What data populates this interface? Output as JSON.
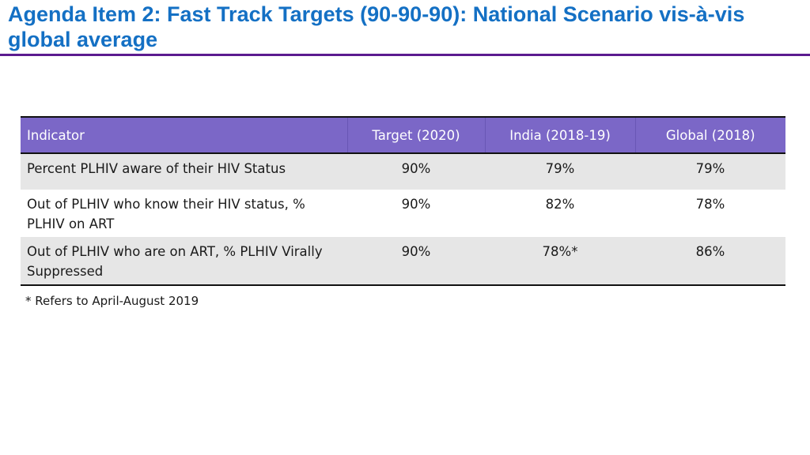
{
  "title": "Agenda Item 2: Fast Track Targets (90-90-90): National Scenario vis-à-vis global average",
  "table": {
    "headers": [
      "Indicator",
      "Target (2020)",
      "India (2018-19)",
      "Global (2018)"
    ],
    "rows": [
      [
        "Percent PLHIV aware of their HIV Status",
        "90%",
        "79%",
        "79%"
      ],
      [
        "Out of PLHIV who know their HIV status, % PLHIV on ART",
        "90%",
        "82%",
        "78%"
      ],
      [
        "Out of PLHIV who are on ART, % PLHIV Virally Suppressed",
        "90%",
        "78%*",
        "86%"
      ]
    ]
  },
  "footnote": "* Refers to April-August 2019",
  "colors": {
    "title": "#1470c4",
    "rule": "#5b1b8f",
    "header_bg": "#7b67c7",
    "row_shade": "#e6e6e6"
  }
}
